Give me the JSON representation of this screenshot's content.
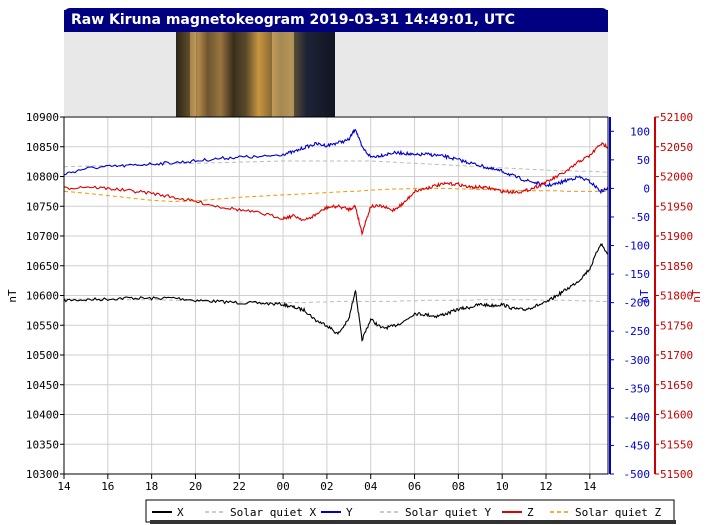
{
  "chart_data": {
    "type": "line",
    "title": "Raw Kiruna magnetokeogram 2019-03-31 14:49:01, UTC",
    "xlabel": "",
    "x_ticks": [
      "14",
      "16",
      "18",
      "20",
      "22",
      "00",
      "02",
      "04",
      "06",
      "08",
      "10",
      "12",
      "14"
    ],
    "left_axis": {
      "label": "nT",
      "range": [
        10300,
        10900
      ],
      "ticks": [
        10300,
        10350,
        10400,
        10450,
        10500,
        10550,
        10600,
        10650,
        10700,
        10750,
        10800,
        10850,
        10900
      ],
      "color": "#000000"
    },
    "right_axis_y": {
      "label": "nT",
      "range": [
        -500,
        125
      ],
      "ticks": [
        -500,
        -450,
        -400,
        -350,
        -300,
        -250,
        -200,
        -150,
        -100,
        -50,
        0,
        50,
        100
      ],
      "color": "#0000cc"
    },
    "right_axis_z": {
      "label": "nT",
      "range": [
        51500,
        52100
      ],
      "ticks": [
        51500,
        51550,
        51600,
        51650,
        51700,
        51750,
        51800,
        51850,
        51900,
        51950,
        52000,
        52050,
        52100
      ],
      "color": "#cc0000"
    },
    "grid": true,
    "legend_placement": "bottom",
    "legend": [
      {
        "label": "X",
        "color": "#000000",
        "dash": false
      },
      {
        "label": "Solar quiet X",
        "color": "#bbbbbb",
        "dash": true
      },
      {
        "label": "Y",
        "color": "#0000cc",
        "dash": false
      },
      {
        "label": "Solar quiet Y",
        "color": "#bbbbbb",
        "dash": true
      },
      {
        "label": "Z",
        "color": "#dd0000",
        "dash": false
      },
      {
        "label": "Solar quiet Z",
        "color": "#ee9900",
        "dash": true
      }
    ],
    "x_hours": [
      0,
      1,
      2,
      3,
      4,
      5,
      6,
      7,
      8,
      9,
      10,
      10.5,
      11,
      11.5,
      12,
      12.5,
      13,
      13.3,
      13.6,
      14,
      14.5,
      15,
      15.5,
      16,
      16.5,
      17,
      17.5,
      18,
      18.5,
      19,
      19.5,
      20,
      20.5,
      21,
      21.5,
      22,
      22.5,
      23,
      23.5,
      24,
      24.5,
      24.83
    ],
    "series": [
      {
        "name": "X",
        "axis": "left",
        "color": "#000000",
        "values": [
          10592,
          10593,
          10594,
          10596,
          10595,
          10596,
          10592,
          10590,
          10588,
          10587,
          10585,
          10580,
          10575,
          10558,
          10550,
          10535,
          10560,
          10610,
          10525,
          10560,
          10545,
          10548,
          10556,
          10570,
          10568,
          10565,
          10570,
          10577,
          10580,
          10585,
          10583,
          10585,
          10578,
          10576,
          10582,
          10588,
          10600,
          10612,
          10625,
          10645,
          10688,
          10668
        ]
      },
      {
        "name": "Solar quiet X",
        "axis": "left",
        "color": "#bbbbbb",
        "dash": true,
        "values": [
          10594,
          10594,
          10594,
          10593,
          10593,
          10592,
          10591,
          10590,
          10589,
          10588,
          10588,
          10588,
          10588,
          10589,
          10589,
          10590,
          10590,
          10590,
          10590,
          10590,
          10590,
          10590,
          10591,
          10591,
          10592,
          10592,
          10592,
          10592,
          10592,
          10593,
          10593,
          10593,
          10593,
          10593,
          10593,
          10592,
          10592,
          10592,
          10591,
          10591,
          10590,
          10590
        ]
      },
      {
        "name": "Y",
        "axis": "y",
        "color": "#0000cc",
        "values": [
          25,
          35,
          38,
          40,
          43,
          45,
          48,
          52,
          55,
          55,
          60,
          64,
          72,
          78,
          75,
          80,
          85,
          105,
          72,
          55,
          58,
          62,
          62,
          58,
          60,
          58,
          55,
          50,
          45,
          40,
          34,
          30,
          22,
          15,
          10,
          5,
          8,
          15,
          20,
          12,
          -5,
          0
        ]
      },
      {
        "name": "Solar quiet Y",
        "axis": "y",
        "color": "#bbbbbb",
        "dash": true,
        "values": [
          38,
          39,
          40,
          41,
          42,
          43,
          44,
          45,
          46,
          47,
          48,
          48,
          48,
          48,
          48,
          48,
          48,
          48,
          48,
          48,
          47,
          46,
          45,
          44,
          43,
          42,
          41,
          40,
          39,
          38,
          37,
          36,
          35,
          34,
          33,
          32,
          31,
          31,
          30,
          30,
          29,
          28
        ]
      },
      {
        "name": "Z",
        "axis": "z",
        "color": "#dd0000",
        "values": [
          51980,
          51983,
          51980,
          51976,
          51972,
          51965,
          51958,
          51950,
          51944,
          51938,
          51930,
          51934,
          51926,
          51936,
          51948,
          51950,
          51945,
          51950,
          51905,
          51950,
          51950,
          51943,
          51955,
          51975,
          51980,
          51985,
          51988,
          51987,
          51982,
          51982,
          51980,
          51975,
          51974,
          51975,
          51982,
          51990,
          52000,
          52010,
          52025,
          52035,
          52055,
          52050
        ]
      },
      {
        "name": "Solar quiet Z",
        "axis": "z",
        "color": "#ee9900",
        "dash": true,
        "values": [
          51975,
          51972,
          51968,
          51964,
          51960,
          51958,
          51959,
          51962,
          51965,
          51967,
          51969,
          51970,
          51971,
          51972,
          51973,
          51974,
          51975,
          51975,
          51976,
          51977,
          51978,
          51979,
          51979,
          51980,
          51980,
          51980,
          51980,
          51979,
          51979,
          51978,
          51978,
          51977,
          51977,
          51976,
          51976,
          51976,
          51976,
          51975,
          51975,
          51975,
          51975,
          51975
        ]
      }
    ]
  }
}
